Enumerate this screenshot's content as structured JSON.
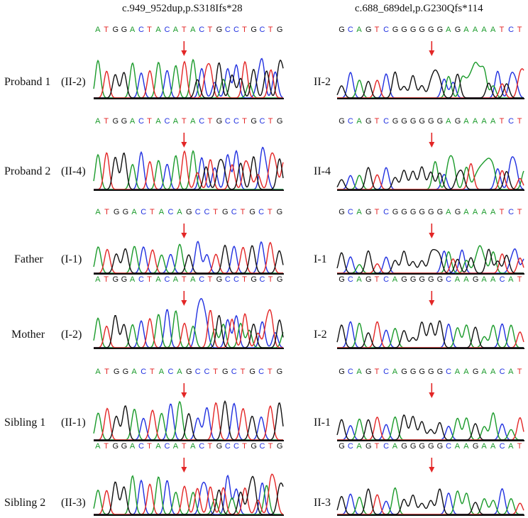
{
  "headers": {
    "left": "c.949_952dup,p.S318Ifs*28",
    "right": "c.688_689del,p.G230Qfs*114"
  },
  "colors": {
    "A": "#1a9a2a",
    "T": "#e32626",
    "G": "#111111",
    "C": "#2030e0",
    "arrow": "#e32626",
    "baseline": "#111111"
  },
  "rows": [
    {
      "label_main": "Proband 1",
      "label_gen": "(II-2)",
      "left_seq": "ATGGACTACATACTGCCTGCTG",
      "right_label": "II-2",
      "right_seq": "GCAGTCGGGGGGAGAAAATCT"
    },
    {
      "label_main": "Proband 2",
      "label_gen": "(II-4)",
      "left_seq": "ATGGACTACATACTGCCTGCTG",
      "right_label": "II-4",
      "right_seq": "GCAGTCGGGGGGAGAAAATCT"
    },
    {
      "label_main": "Father",
      "label_gen": "(I-1)",
      "left_seq": "ATGGACTACAGCCTGCTGCTG",
      "right_label": "I-1",
      "right_seq": "GCAGTCGGGGGGAGAAAATCT"
    },
    {
      "label_main": "Mother",
      "label_gen": "(I-2)",
      "left_seq": "ATGGACTACATACTGCCTGCTG",
      "right_label": "I-2",
      "right_seq": "GCAGTCAGGGGGCAAGAACAT"
    },
    {
      "label_main": "Sibling 1",
      "label_gen": "(II-1)",
      "left_seq": "ATGGACTACAGCCTGCTGCTG",
      "right_label": "II-1",
      "right_seq": "GCAGTCAGGGGGCAAGAACAT"
    },
    {
      "label_main": "Sibling 2",
      "label_gen": "(II-3)",
      "left_seq": "ATGGACTACATACTGCCTGCTG",
      "right_label": "II-3",
      "right_seq": "GCAGTCAGGGGGCAAGAACAT"
    }
  ]
}
